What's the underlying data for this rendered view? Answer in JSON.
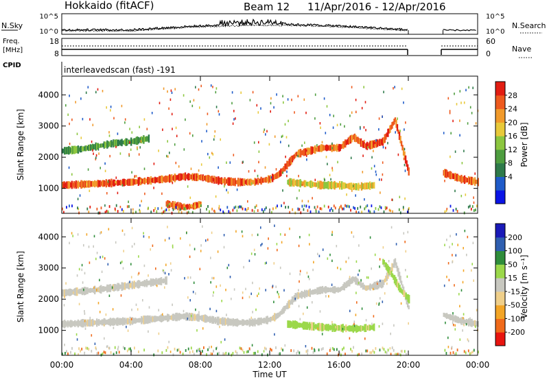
{
  "header": {
    "station": "Hokkaido (fitACF)",
    "beam": "Beam 12",
    "date_range": "11/Apr/2016 - 12/Apr/2016"
  },
  "panels": {
    "nsky": {
      "label": "N.Sky",
      "y_ticks": [
        "10^5",
        "10^0"
      ],
      "right_label": "N.Search",
      "right_ticks": [
        "10^5",
        "10^0"
      ]
    },
    "freq": {
      "label_line1": "Freq.",
      "label_line2": "[MHz]",
      "y_ticks": [
        "18",
        "8"
      ],
      "right_label": "Nave",
      "right_ticks": [
        "60",
        "0"
      ]
    },
    "cpid": {
      "label": "CPID",
      "text": "interleavedscan (fast) -191"
    }
  },
  "colors": {
    "power_scale": [
      "#0a14e6",
      "#1f5bc9",
      "#2e7a4a",
      "#4e9d3f",
      "#8cc63f",
      "#e8c93a",
      "#f19a2b",
      "#ee5a1e",
      "#e21d12"
    ],
    "velocity_scale": [
      "#e8150f",
      "#f06a1a",
      "#f3a526",
      "#efcf8a",
      "#c8c8c0",
      "#9bd84a",
      "#2f8d3b",
      "#2f5fb0",
      "#1a1ab8"
    ]
  },
  "chart_data": [
    {
      "type": "heatmap",
      "name": "power",
      "ylabel": "Slant Range [km]",
      "xlabel": "Time UT",
      "xlim_hours": [
        0,
        24
      ],
      "x_tick_labels": [
        "00:00",
        "04:00",
        "08:00",
        "12:00",
        "16:00",
        "20:00",
        "00:00"
      ],
      "ylim": [
        200,
        4600
      ],
      "y_tick_values": [
        1000,
        2000,
        3000,
        4000
      ],
      "colorbar_label": "Power [dB]",
      "colorbar_ticks": [
        "28",
        "24",
        "20",
        "16",
        "12",
        "8",
        "4"
      ],
      "data_gap_hours": [
        20.0,
        22.0
      ],
      "bands": [
        {
          "x": [
            0,
            2,
            4,
            6,
            7,
            8,
            9,
            10,
            11,
            12,
            12.5,
            13.5,
            15,
            16,
            16.8,
            17.5,
            18.5,
            19.2,
            20
          ],
          "y": [
            1100,
            1150,
            1200,
            1300,
            1380,
            1350,
            1250,
            1200,
            1200,
            1300,
            1450,
            2100,
            2300,
            2300,
            2650,
            2350,
            2500,
            3200,
            1500
          ],
          "power_db": 26
        },
        {
          "x": [
            0,
            1,
            2,
            3,
            4,
            5
          ],
          "y": [
            2200,
            2250,
            2350,
            2450,
            2500,
            2600
          ],
          "power_db": 14
        },
        {
          "x": [
            13,
            14,
            15,
            16,
            17,
            18
          ],
          "y": [
            1200,
            1150,
            1100,
            1100,
            1050,
            1100
          ],
          "power_db": 18
        },
        {
          "x": [
            6,
            6.5,
            7,
            7.5,
            8
          ],
          "y": [
            500,
            450,
            400,
            420,
            500
          ],
          "power_db": 26
        },
        {
          "x": [
            22,
            23,
            24
          ],
          "y": [
            1500,
            1300,
            1200
          ],
          "power_db": 24
        }
      ]
    },
    {
      "type": "heatmap",
      "name": "velocity",
      "ylabel": "Slant Range [km]",
      "xlabel": "Time UT",
      "xlim_hours": [
        0,
        24
      ],
      "x_tick_labels": [
        "00:00",
        "04:00",
        "08:00",
        "12:00",
        "16:00",
        "20:00",
        "00:00"
      ],
      "ylim": [
        200,
        4600
      ],
      "y_tick_values": [
        1000,
        2000,
        3000,
        4000
      ],
      "colorbar_label": "Velocity [m s⁻¹]",
      "colorbar_ticks": [
        "200",
        "100",
        "50",
        "15",
        "-15",
        "-50",
        "-100",
        "-200"
      ],
      "data_gap_hours": [
        20.0,
        22.0
      ],
      "bands": [
        {
          "x": [
            0,
            2,
            4,
            6,
            7,
            8,
            9,
            10,
            11,
            12,
            12.5,
            13.5,
            15,
            16,
            16.8,
            17.5,
            18.5,
            19.2,
            20
          ],
          "y": [
            1200,
            1250,
            1300,
            1400,
            1450,
            1400,
            1300,
            1250,
            1250,
            1350,
            1500,
            2100,
            2300,
            2300,
            2650,
            2350,
            2500,
            3200,
            1700
          ],
          "velocity": 0
        },
        {
          "x": [
            0,
            2,
            4,
            6
          ],
          "y": [
            2200,
            2300,
            2450,
            2600
          ],
          "velocity": 0
        },
        {
          "x": [
            13,
            15,
            17,
            18
          ],
          "y": [
            1200,
            1100,
            1050,
            1100
          ],
          "velocity": 60
        },
        {
          "x": [
            18.5,
            19,
            19.5,
            20
          ],
          "y": [
            3200,
            2800,
            2300,
            2000
          ],
          "velocity": 60
        },
        {
          "x": [
            22,
            23,
            24
          ],
          "y": [
            1500,
            1300,
            1200
          ],
          "velocity": 0
        }
      ]
    }
  ]
}
